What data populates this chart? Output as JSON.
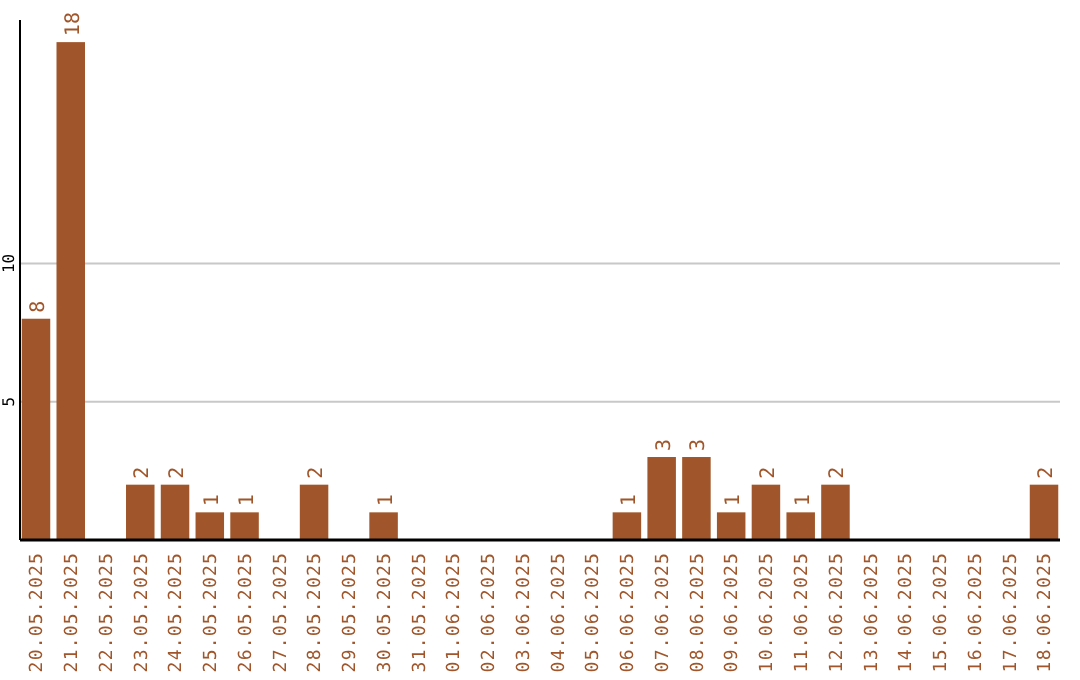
{
  "chart_data": {
    "type": "bar",
    "categories": [
      "20.05.2025",
      "21.05.2025",
      "22.05.2025",
      "23.05.2025",
      "24.05.2025",
      "25.05.2025",
      "26.05.2025",
      "27.05.2025",
      "28.05.2025",
      "29.05.2025",
      "30.05.2025",
      "31.05.2025",
      "01.06.2025",
      "02.06.2025",
      "03.06.2025",
      "04.06.2025",
      "05.06.2025",
      "06.06.2025",
      "07.06.2025",
      "08.06.2025",
      "09.06.2025",
      "10.06.2025",
      "11.06.2025",
      "12.06.2025",
      "13.06.2025",
      "14.06.2025",
      "15.06.2025",
      "16.06.2025",
      "17.06.2025",
      "18.06.2025"
    ],
    "values": [
      8,
      18,
      0,
      2,
      2,
      1,
      1,
      0,
      2,
      0,
      1,
      0,
      0,
      0,
      0,
      0,
      0,
      1,
      3,
      3,
      1,
      2,
      1,
      2,
      0,
      0,
      0,
      0,
      0,
      2
    ],
    "value_labels": [
      "8",
      "18",
      null,
      "2",
      "2",
      "1",
      "1",
      null,
      "2",
      null,
      "1",
      null,
      null,
      null,
      null,
      null,
      null,
      "1",
      "3",
      "3",
      "1",
      "2",
      "1",
      "2",
      null,
      null,
      null,
      null,
      null,
      "2"
    ],
    "color": "#a0562a",
    "ylim": [
      0,
      18.8
    ],
    "yticks": [
      5,
      10
    ],
    "grid": "y"
  }
}
